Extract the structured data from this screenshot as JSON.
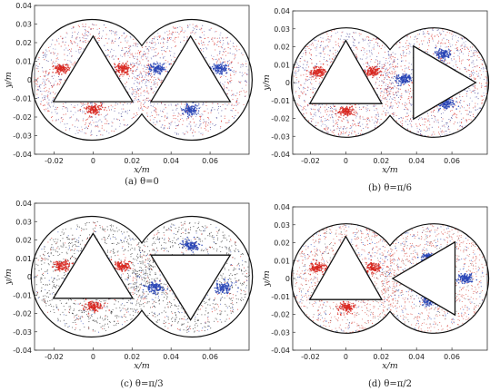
{
  "chart_data": [
    {
      "type": "scatter",
      "caption": "(a)  θ=0",
      "xlabel": "x/m",
      "ylabel": "y/m",
      "xlim": [
        -0.03,
        0.08
      ],
      "ylim": [
        -0.04,
        0.04
      ],
      "xticks": [
        "-0.02",
        "0",
        "0.02",
        "0.04",
        "0.06"
      ],
      "yticks": [
        "0.04",
        "0.03",
        "0.02",
        "0.01",
        "0",
        "-0.01",
        "-0.02",
        "-0.03",
        "-0.04"
      ],
      "chambers": [
        {
          "cx": 0,
          "cy": 0,
          "r": 0.031
        },
        {
          "cx": 0.05,
          "cy": 0,
          "r": 0.031
        }
      ],
      "rotor_angles_deg": [
        90,
        90
      ],
      "rotor_circumradius": 0.0235,
      "background_dot_color": "#3a3a8c",
      "clusters": [
        {
          "color": "#d8261f",
          "x": -0.016,
          "y": 0.006
        },
        {
          "color": "#d8261f",
          "x": 0.015,
          "y": 0.006
        },
        {
          "color": "#d8261f",
          "x": 0.0,
          "y": -0.016
        },
        {
          "color": "#2743b5",
          "x": 0.033,
          "y": 0.006
        },
        {
          "color": "#2743b5",
          "x": 0.065,
          "y": 0.006
        },
        {
          "color": "#2743b5",
          "x": 0.05,
          "y": -0.016
        }
      ]
    },
    {
      "type": "scatter",
      "caption": "(b)  θ=π/6",
      "xlabel": "x/m",
      "ylabel": "y/m",
      "xlim": [
        -0.03,
        0.08
      ],
      "ylim": [
        -0.04,
        0.04
      ],
      "xticks": [
        "-0.02",
        "0",
        "0.02",
        "0.04",
        "0.06"
      ],
      "yticks": [
        "0.04",
        "0.03",
        "0.02",
        "0.01",
        "0",
        "-0.01",
        "-0.02",
        "-0.03",
        "-0.04"
      ],
      "chambers": [
        {
          "cx": 0,
          "cy": 0,
          "r": 0.031
        },
        {
          "cx": 0.05,
          "cy": 0,
          "r": 0.031
        }
      ],
      "rotor_angles_deg": [
        90,
        0
      ],
      "rotor_circumradius": 0.0235,
      "background_dot_color": "#3a3a8c",
      "clusters": [
        {
          "color": "#d8261f",
          "x": -0.016,
          "y": 0.006
        },
        {
          "color": "#d8261f",
          "x": 0.015,
          "y": 0.006
        },
        {
          "color": "#d8261f",
          "x": 0.0,
          "y": -0.016
        },
        {
          "color": "#2743b5",
          "x": 0.055,
          "y": 0.016
        },
        {
          "color": "#2743b5",
          "x": 0.033,
          "y": 0.002
        },
        {
          "color": "#2743b5",
          "x": 0.057,
          "y": -0.012
        }
      ]
    },
    {
      "type": "scatter",
      "caption": "(c)  θ=π/3",
      "xlabel": "x/m",
      "ylabel": "y/m",
      "xlim": [
        -0.03,
        0.08
      ],
      "ylim": [
        -0.04,
        0.04
      ],
      "xticks": [
        "-0.02",
        "0",
        "0.02",
        "0.04",
        "0.06"
      ],
      "yticks": [
        "0.04",
        "0.03",
        "0.02",
        "0.01",
        "0",
        "-0.01",
        "-0.02",
        "-0.03",
        "-0.04"
      ],
      "chambers": [
        {
          "cx": 0,
          "cy": 0,
          "r": 0.031
        },
        {
          "cx": 0.05,
          "cy": 0,
          "r": 0.031
        }
      ],
      "rotor_angles_deg": [
        90,
        -90
      ],
      "rotor_circumradius": 0.0235,
      "background_dot_color": "#222222",
      "clusters": [
        {
          "color": "#d8261f",
          "x": -0.016,
          "y": 0.006
        },
        {
          "color": "#d8261f",
          "x": 0.015,
          "y": 0.006
        },
        {
          "color": "#d8261f",
          "x": 0.0,
          "y": -0.016
        },
        {
          "color": "#2743b5",
          "x": 0.05,
          "y": 0.017
        },
        {
          "color": "#2743b5",
          "x": 0.067,
          "y": -0.006
        },
        {
          "color": "#2743b5",
          "x": 0.032,
          "y": -0.006
        }
      ]
    },
    {
      "type": "scatter",
      "caption": "(d)  θ=π/2",
      "xlabel": "x/m",
      "ylabel": "y/m",
      "xlim": [
        -0.03,
        0.08
      ],
      "ylim": [
        -0.04,
        0.04
      ],
      "xticks": [
        "-0.02",
        "0",
        "0.02",
        "0.04",
        "0.06"
      ],
      "yticks": [
        "0.04",
        "0.03",
        "0.02",
        "0.01",
        "0",
        "-0.01",
        "-0.02",
        "-0.03",
        "-0.04"
      ],
      "chambers": [
        {
          "cx": 0,
          "cy": 0,
          "r": 0.031
        },
        {
          "cx": 0.05,
          "cy": 0,
          "r": 0.031
        }
      ],
      "rotor_angles_deg": [
        90,
        180
      ],
      "rotor_circumradius": 0.0235,
      "background_dot_color": "#d84a40",
      "clusters": [
        {
          "color": "#d8261f",
          "x": -0.016,
          "y": 0.006
        },
        {
          "color": "#d8261f",
          "x": 0.015,
          "y": 0.006
        },
        {
          "color": "#d8261f",
          "x": 0.0,
          "y": -0.016
        },
        {
          "color": "#2743b5",
          "x": 0.047,
          "y": 0.012
        },
        {
          "color": "#2743b5",
          "x": 0.047,
          "y": -0.012
        },
        {
          "color": "#2743b5",
          "x": 0.068,
          "y": 0.0
        }
      ]
    }
  ]
}
